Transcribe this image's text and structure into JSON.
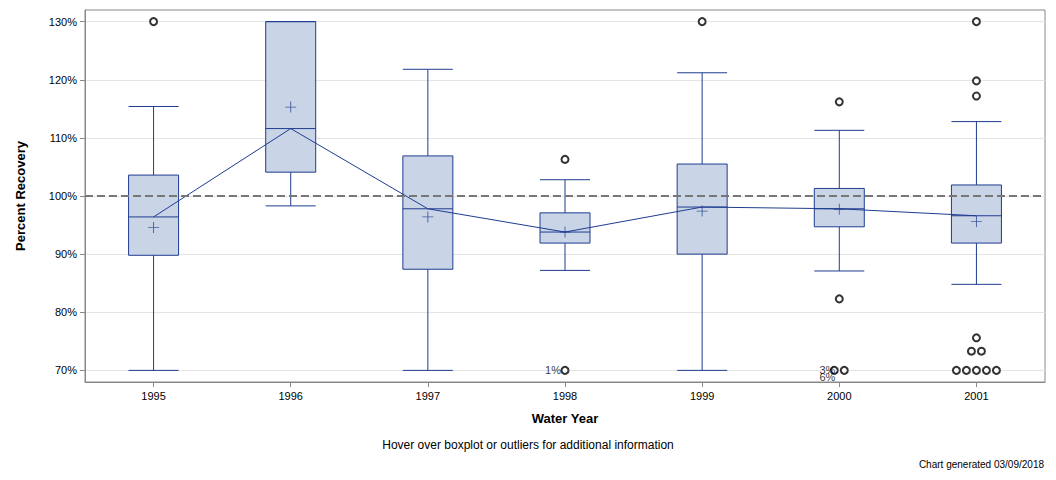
{
  "chart_data": {
    "type": "boxplot",
    "x_label": "Water Year",
    "y_label": "Percent Recovery",
    "subtitle": "Hover over boxplot or outliers for additional information",
    "footnote": "Chart generated 03/09/2018",
    "categories": [
      "1995",
      "1996",
      "1997",
      "1998",
      "1999",
      "2000",
      "2001"
    ],
    "boxes": [
      [
        70,
        89.8,
        96.4,
        103.6,
        115.4
      ],
      [
        98.3,
        104.1,
        111.6,
        130,
        130
      ],
      [
        70,
        87.4,
        97.8,
        106.9,
        121.8
      ],
      [
        87.2,
        91.9,
        93.8,
        97.1,
        102.8
      ],
      [
        70,
        90.0,
        98.1,
        105.5,
        121.2
      ],
      [
        87.1,
        94.7,
        97.8,
        101.3,
        111.3
      ],
      [
        84.8,
        91.9,
        96.6,
        101.9,
        112.8
      ]
    ],
    "means": [
      94.6,
      115.3,
      96.4,
      93.8,
      97.4,
      97.7,
      95.6
    ],
    "outliers": [
      [
        130
      ],
      [],
      [],
      [
        106.3,
        70
      ],
      [
        130
      ],
      [
        116.2,
        82.3,
        70,
        70
      ],
      [
        130,
        119.8,
        117.2,
        75.6,
        73.3,
        73.3,
        70,
        70,
        70,
        70,
        70
      ]
    ],
    "annotations": [
      {
        "x": "1998",
        "y": 70,
        "text": "1%"
      },
      {
        "x": "2000",
        "y": 70,
        "text": "3%"
      },
      {
        "x": "2000",
        "y": 70,
        "text": "6%"
      }
    ],
    "reference_line": 100,
    "color": "#c9d4e6",
    "ylim": [
      68,
      132
    ],
    "yticks": [
      {
        "value": 70,
        "label": "70%"
      },
      {
        "value": 80,
        "label": "80%"
      },
      {
        "value": 90,
        "label": "90%"
      },
      {
        "value": 100,
        "label": "100%"
      },
      {
        "value": 110,
        "label": "110%"
      },
      {
        "value": 120,
        "label": "120%"
      },
      {
        "value": 130,
        "label": "130%"
      }
    ],
    "grid": true
  }
}
